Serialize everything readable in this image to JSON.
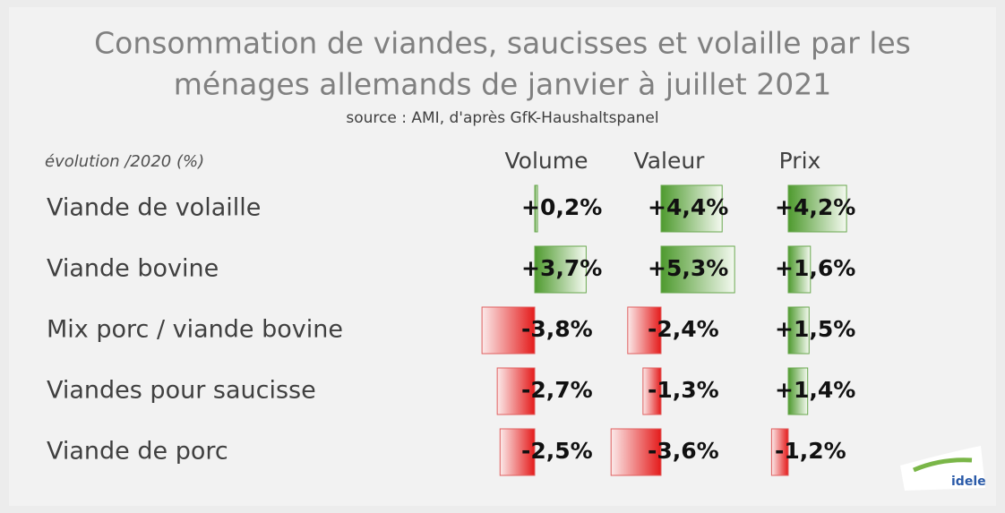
{
  "header": {
    "title_line1": "Consommation de viandes, saucisses et volaille par les",
    "title_line2": "ménages allemands de janvier à juillet 2021",
    "source": "source : AMI, d'après GfK-Haushaltspanel"
  },
  "table": {
    "label_header": "évolution /2020 (%)",
    "columns": [
      "Volume",
      "Valeur",
      "Prix"
    ],
    "rows": [
      {
        "name": "Viande de volaille",
        "values": [
          0.2,
          4.4,
          4.2
        ],
        "value_labels": [
          "+0,2%",
          "+4,4%",
          "+4,2%"
        ]
      },
      {
        "name": "Viande bovine",
        "values": [
          3.7,
          5.3,
          1.6
        ],
        "value_labels": [
          "+3,7%",
          "+5,3%",
          "+1,6%"
        ]
      },
      {
        "name": "Mix porc / viande bovine",
        "values": [
          -3.8,
          -2.4,
          1.5
        ],
        "value_labels": [
          "-3,8%",
          "-2,4%",
          "+1,5%"
        ]
      },
      {
        "name": "Viandes pour saucisse",
        "values": [
          -2.7,
          -1.3,
          1.4
        ],
        "value_labels": [
          "-2,7%",
          "-1,3%",
          "+1,4%"
        ]
      },
      {
        "name": "Viande de porc",
        "values": [
          -2.5,
          -3.6,
          -1.2
        ],
        "value_labels": [
          "-2,5%",
          "-3,6%",
          "-1,2%"
        ]
      }
    ]
  },
  "logo": "idele"
}
